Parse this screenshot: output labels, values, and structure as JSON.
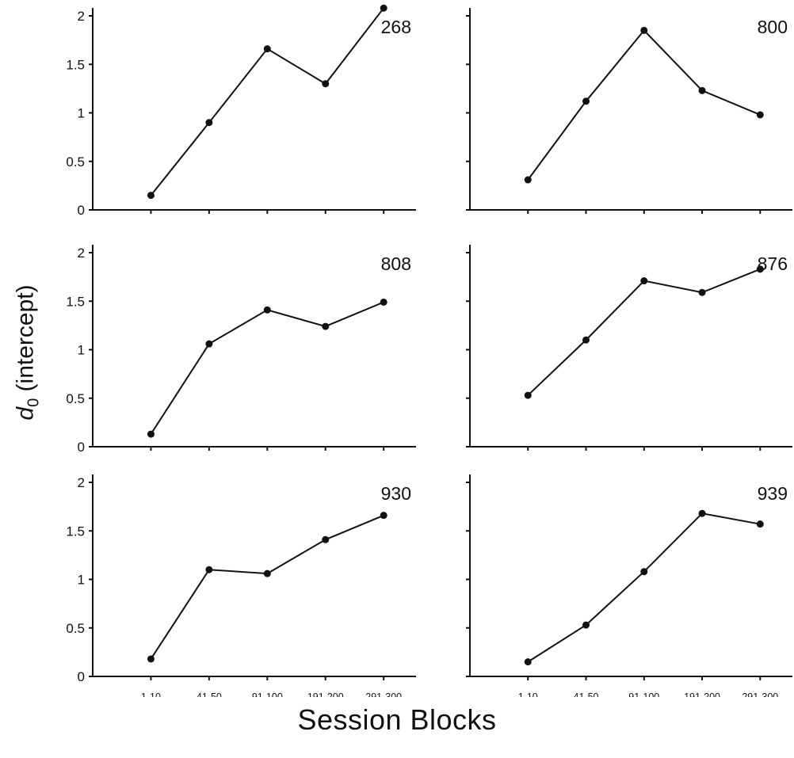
{
  "figure": {
    "ylabel_var": "d",
    "ylabel_sub": "0",
    "ylabel_rest": " (intercept)",
    "xlabel": "Session Blocks"
  },
  "chart_data": [
    {
      "type": "line",
      "panel_label": "268",
      "categories": [
        "1-10",
        "41-50",
        "91-100",
        "191-200",
        "291-300"
      ],
      "values": [
        0.15,
        0.9,
        1.66,
        1.3,
        2.08
      ],
      "ylim": [
        0,
        2
      ],
      "yticks": [
        0,
        0.5,
        1,
        1.5,
        2
      ],
      "show_ytick_labels": true,
      "show_xtick_labels": false
    },
    {
      "type": "line",
      "panel_label": "800",
      "categories": [
        "1-10",
        "41-50",
        "91-100",
        "191-200",
        "291-300"
      ],
      "values": [
        0.31,
        1.12,
        1.85,
        1.23,
        0.98
      ],
      "ylim": [
        0,
        2
      ],
      "yticks": [
        0,
        0.5,
        1,
        1.5,
        2
      ],
      "show_ytick_labels": false,
      "show_xtick_labels": false
    },
    {
      "type": "line",
      "panel_label": "808",
      "categories": [
        "1-10",
        "41-50",
        "91-100",
        "191-200",
        "291-300"
      ],
      "values": [
        0.13,
        1.06,
        1.41,
        1.24,
        1.49
      ],
      "ylim": [
        0,
        2
      ],
      "yticks": [
        0,
        0.5,
        1,
        1.5,
        2
      ],
      "show_ytick_labels": true,
      "show_xtick_labels": false
    },
    {
      "type": "line",
      "panel_label": "876",
      "categories": [
        "1-10",
        "41-50",
        "91-100",
        "191-200",
        "291-300"
      ],
      "values": [
        0.53,
        1.1,
        1.71,
        1.59,
        1.83
      ],
      "ylim": [
        0,
        2
      ],
      "yticks": [
        0,
        0.5,
        1,
        1.5,
        2
      ],
      "show_ytick_labels": false,
      "show_xtick_labels": false
    },
    {
      "type": "line",
      "panel_label": "930",
      "categories": [
        "1-10",
        "41-50",
        "91-100",
        "191-200",
        "291-300"
      ],
      "values": [
        0.18,
        1.1,
        1.06,
        1.41,
        1.66
      ],
      "ylim": [
        0,
        2
      ],
      "yticks": [
        0,
        0.5,
        1,
        1.5,
        2
      ],
      "show_ytick_labels": true,
      "show_xtick_labels": true
    },
    {
      "type": "line",
      "panel_label": "939",
      "categories": [
        "1-10",
        "41-50",
        "91-100",
        "191-200",
        "291-300"
      ],
      "values": [
        0.15,
        0.53,
        1.08,
        1.68,
        1.57
      ],
      "ylim": [
        0,
        2
      ],
      "yticks": [
        0,
        0.5,
        1,
        1.5,
        2
      ],
      "show_ytick_labels": false,
      "show_xtick_labels": true
    }
  ]
}
